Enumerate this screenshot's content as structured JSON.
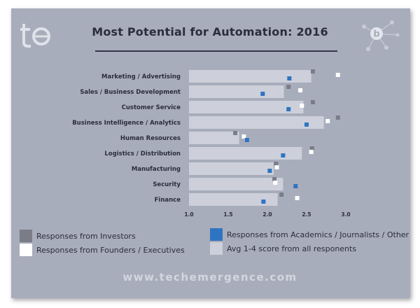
{
  "footer": "www.techemergence.com",
  "colors": {
    "background": "#a8adbb",
    "avg_bar": "#cdd0da",
    "investors": "#7a7d88",
    "founders": "#ffffff",
    "academics": "#2f74c0",
    "text": "#2b2e3b"
  },
  "legend": [
    {
      "key": "investors",
      "label": "Responses from Investors",
      "color": "#7a7d88"
    },
    {
      "key": "academics",
      "label": "Responses from Academics / Journalists / Other",
      "color": "#2f74c0"
    },
    {
      "key": "founders",
      "label": "Responses from Founders / Executives",
      "color": "#ffffff"
    },
    {
      "key": "avg",
      "label": "Avg 1-4 score from all responents",
      "color": "#cdd0da"
    }
  ],
  "chart_data": {
    "type": "bar",
    "orientation": "horizontal",
    "title": "Most Potential for Automation: 2016",
    "categories": [
      "Marketing / Advertising",
      "Sales / Business Development",
      "Customer Service",
      "Business Intelligence / Analytics",
      "Human Resources",
      "Logistics / Distribution",
      "Manufacturing",
      "Security",
      "Finance"
    ],
    "xlim": [
      1.0,
      3.0
    ],
    "xticks": [
      "1.0",
      "1.5",
      "2.0",
      "2.5",
      "3.0"
    ],
    "xtick_values": [
      1.0,
      1.5,
      2.0,
      2.5,
      3.0
    ],
    "grid": false,
    "legend_position": "bottom",
    "series": [
      {
        "name": "Avg 1-4 score from all responents",
        "kind": "bar",
        "values": [
          2.56,
          2.21,
          2.46,
          2.72,
          1.64,
          2.44,
          2.08,
          2.2,
          2.13
        ]
      },
      {
        "name": "Responses from Investors",
        "kind": "marker",
        "values": [
          2.58,
          2.27,
          2.58,
          2.9,
          1.59,
          2.57,
          2.11,
          2.09,
          2.18
        ]
      },
      {
        "name": "Responses from Founders / Executives",
        "kind": "marker",
        "values": [
          2.9,
          2.42,
          2.44,
          2.77,
          1.7,
          2.56,
          2.12,
          2.1,
          2.38
        ]
      },
      {
        "name": "Responses from Academics / Journalists / Other",
        "kind": "marker",
        "values": [
          2.28,
          1.94,
          2.27,
          2.5,
          1.74,
          2.2,
          2.03,
          2.36,
          1.95
        ]
      }
    ]
  }
}
